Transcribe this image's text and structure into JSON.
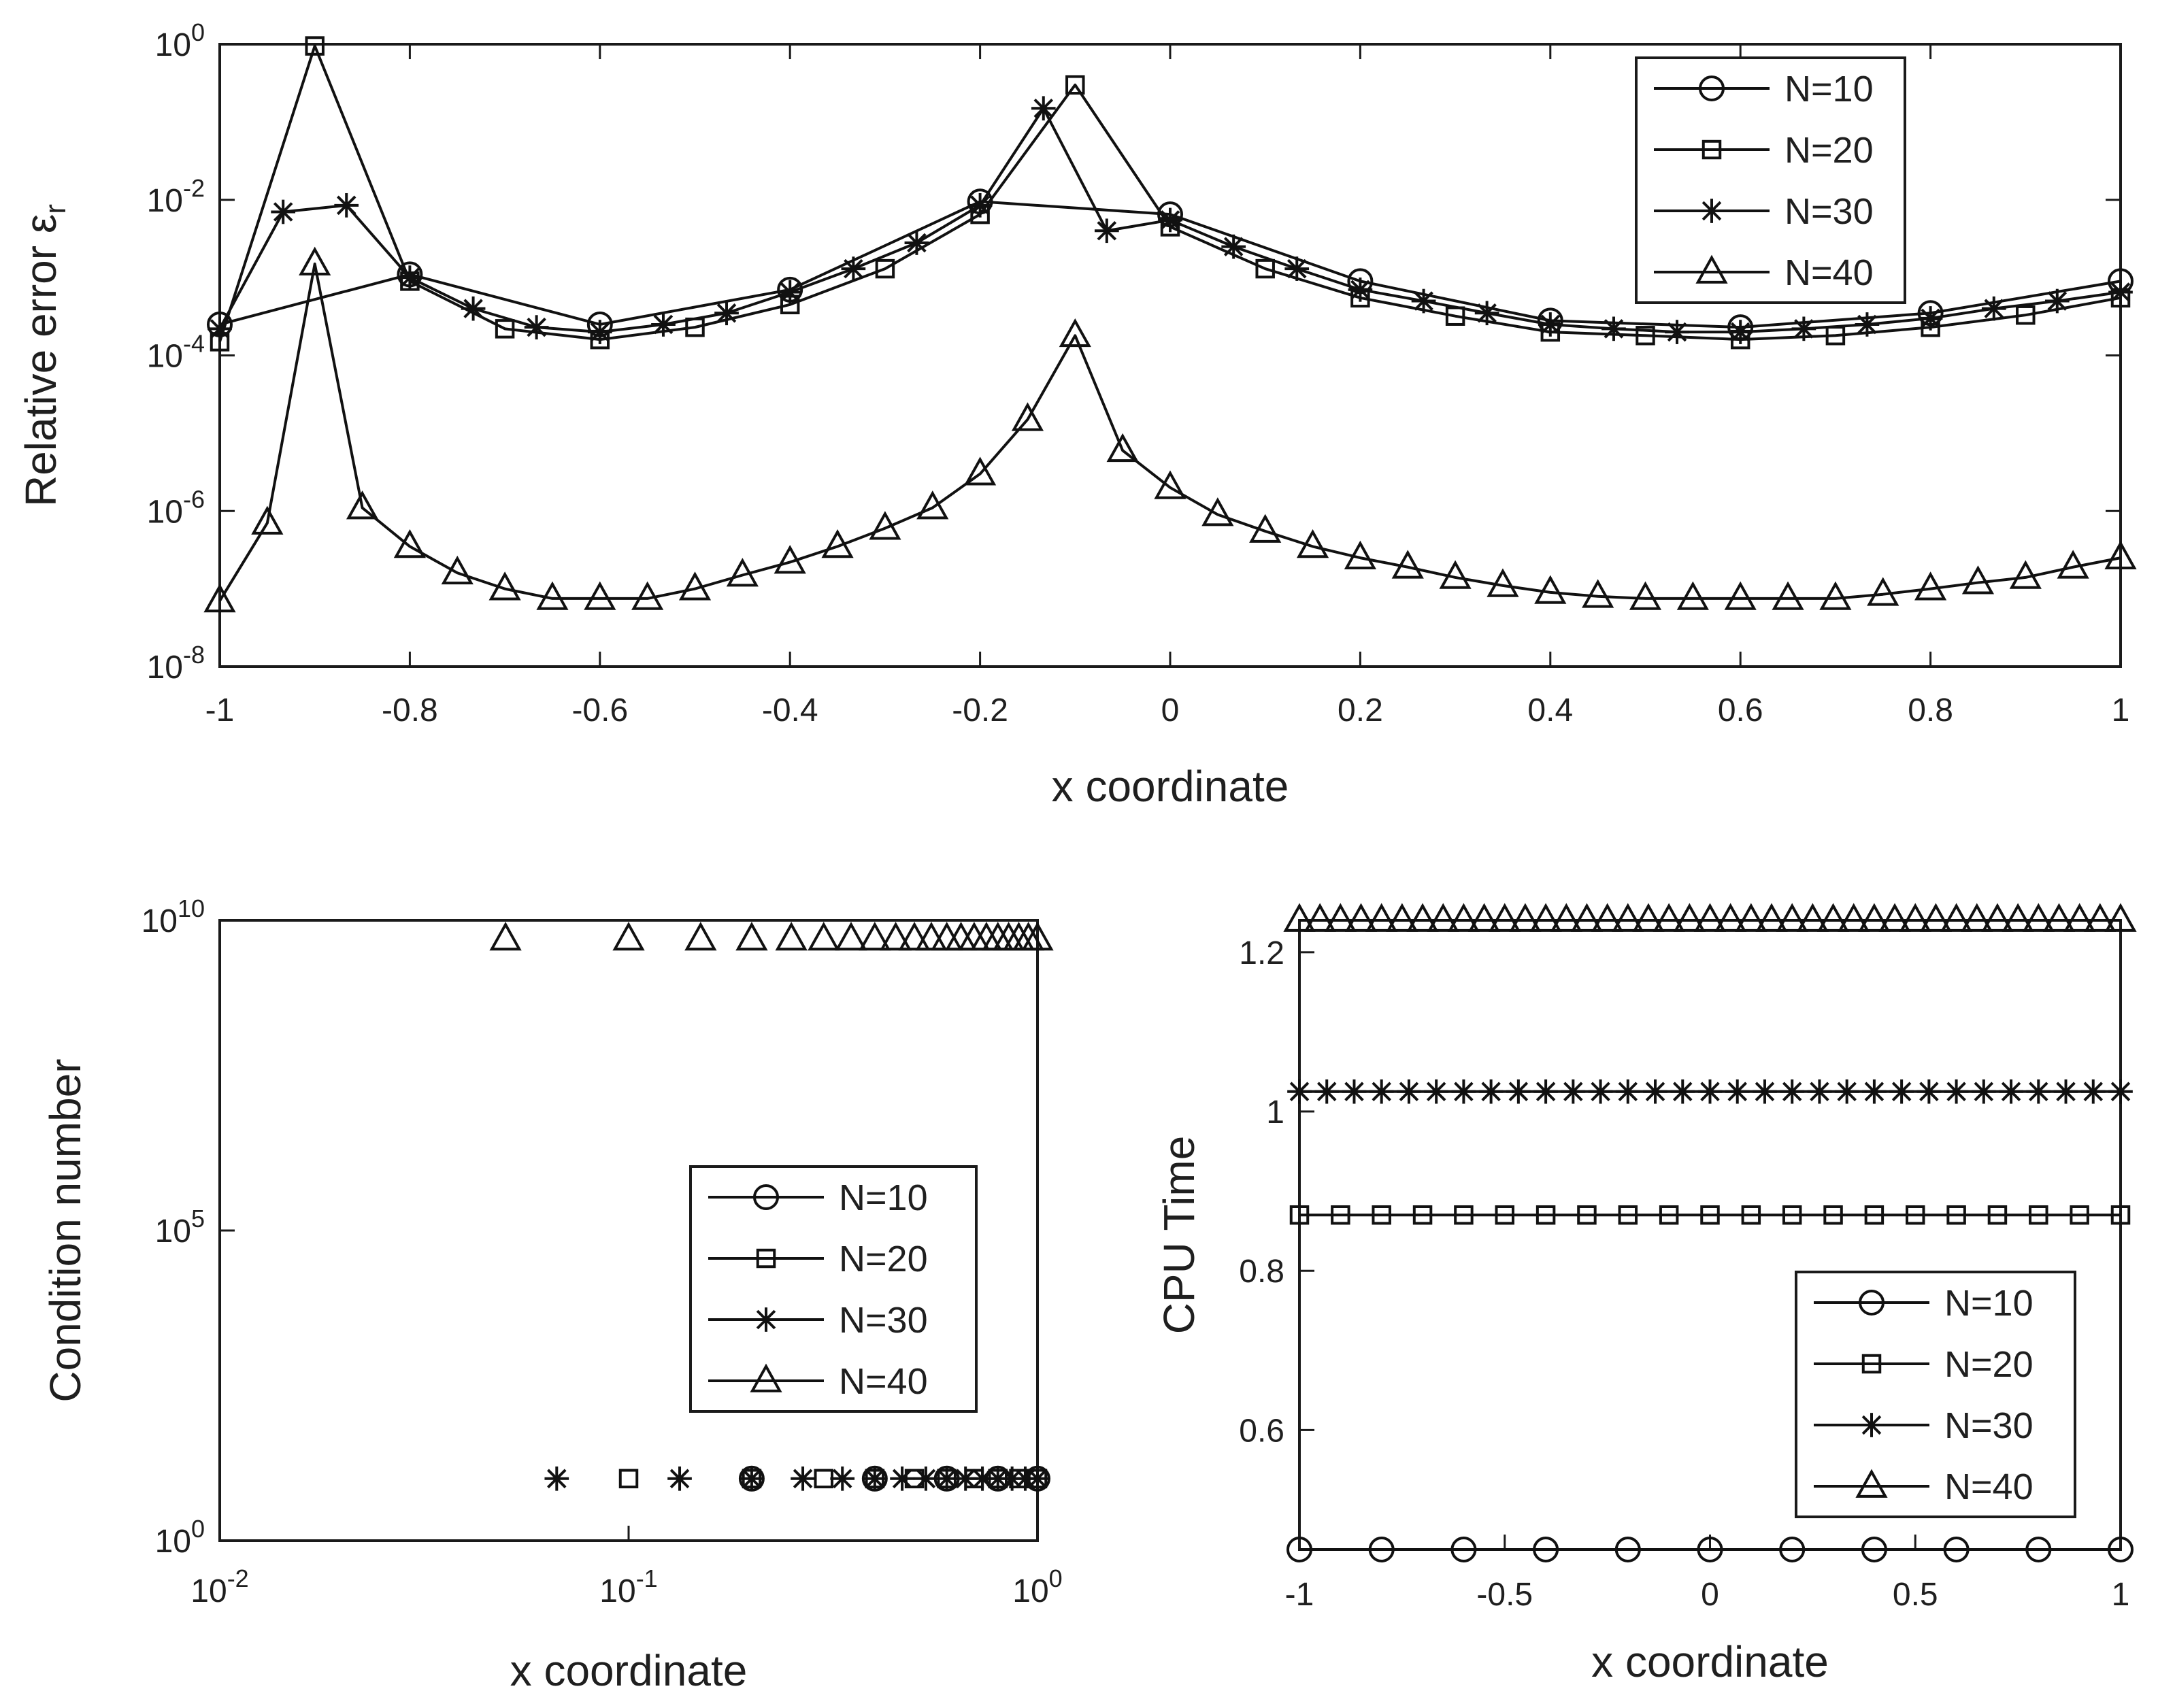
{
  "chart_data": [
    {
      "id": "top",
      "type": "line",
      "xlabel": "x coordinate",
      "ylabel": "Relative error ε",
      "ylabel_sub": "r",
      "xscale": "linear",
      "yscale": "log",
      "xlim": [
        -1,
        1
      ],
      "ylim": [
        1e-08,
        1
      ],
      "xticks": [
        -1,
        -0.8,
        -0.6,
        -0.4,
        -0.2,
        0,
        0.2,
        0.4,
        0.6,
        0.8,
        1
      ],
      "xtick_labels": [
        "-1",
        "-0.8",
        "-0.6",
        "-0.4",
        "-0.2",
        "0",
        "0.2",
        "0.4",
        "0.6",
        "0.8",
        "1"
      ],
      "ytick_exponents": [
        0,
        -2,
        -4,
        -6,
        -8
      ],
      "ytick_base": "10",
      "legend_position": "top-right",
      "series": [
        {
          "name": "N=10",
          "marker": "circle",
          "x": [
            -1,
            -0.8,
            -0.6,
            -0.4,
            -0.2,
            0,
            0.2,
            0.4,
            0.6,
            0.8,
            1
          ],
          "y": [
            0.00025,
            0.0011,
            0.00025,
            0.0007,
            0.0095,
            0.0065,
            0.0009,
            0.00028,
            0.00023,
            0.00035,
            0.0009
          ]
        },
        {
          "name": "N=20",
          "marker": "square",
          "x": [
            -1,
            -0.9,
            -0.8,
            -0.7,
            -0.6,
            -0.5,
            -0.4,
            -0.3,
            -0.2,
            -0.1,
            0,
            0.1,
            0.2,
            0.3,
            0.4,
            0.5,
            0.6,
            0.7,
            0.8,
            0.9,
            1
          ],
          "y": [
            0.00015,
            0.95,
            0.0009,
            0.00022,
            0.00016,
            0.00023,
            0.00045,
            0.0013,
            0.0065,
            0.3,
            0.0045,
            0.0013,
            0.00055,
            0.00032,
            0.0002,
            0.00018,
            0.00016,
            0.00018,
            0.00023,
            0.00033,
            0.00055
          ]
        },
        {
          "name": "N=30",
          "marker": "star",
          "x": [
            -1,
            -0.9333,
            -0.8667,
            -0.8,
            -0.7333,
            -0.6667,
            -0.6,
            -0.5333,
            -0.4667,
            -0.4,
            -0.3333,
            -0.2667,
            -0.2,
            -0.1333,
            -0.0667,
            0,
            0.0667,
            0.1333,
            0.2,
            0.2667,
            0.3333,
            0.4,
            0.4667,
            0.5333,
            0.6,
            0.6667,
            0.7333,
            0.8,
            0.8667,
            0.9333,
            1
          ],
          "y": [
            0.00022,
            0.007,
            0.0085,
            0.001,
            0.0004,
            0.00023,
            0.0002,
            0.00025,
            0.00035,
            0.00065,
            0.0013,
            0.0028,
            0.0085,
            0.15,
            0.004,
            0.0055,
            0.0025,
            0.0013,
            0.0007,
            0.0005,
            0.00035,
            0.00025,
            0.00022,
            0.0002,
            0.0002,
            0.00022,
            0.00025,
            0.0003,
            0.0004,
            0.0005,
            0.00065
          ]
        },
        {
          "name": "N=40",
          "marker": "triangle",
          "x": [
            -1,
            -0.95,
            -0.9,
            -0.85,
            -0.8,
            -0.75,
            -0.7,
            -0.65,
            -0.6,
            -0.55,
            -0.5,
            -0.45,
            -0.4,
            -0.35,
            -0.3,
            -0.25,
            -0.2,
            -0.15,
            -0.1,
            -0.05,
            0,
            0.05,
            0.1,
            0.15,
            0.2,
            0.25,
            0.3,
            0.35,
            0.4,
            0.45,
            0.5,
            0.55,
            0.6,
            0.65,
            0.7,
            0.75,
            0.8,
            0.85,
            0.9,
            0.95,
            1
          ],
          "y": [
            7e-08,
            7e-07,
            0.0015,
            1.1e-06,
            3.5e-07,
            1.6e-07,
            1e-07,
            7.5e-08,
            7.5e-08,
            7.5e-08,
            1e-07,
            1.5e-07,
            2.2e-07,
            3.5e-07,
            6e-07,
            1.1e-06,
            3e-06,
            1.5e-05,
            0.00018,
            6e-06,
            2e-06,
            9e-07,
            5.5e-07,
            3.5e-07,
            2.5e-07,
            1.9e-07,
            1.4e-07,
            1.1e-07,
            9e-08,
            8e-08,
            7.5e-08,
            7.5e-08,
            7.5e-08,
            7.5e-08,
            7.5e-08,
            8.5e-08,
            1e-07,
            1.2e-07,
            1.4e-07,
            1.9e-07,
            2.5e-07
          ]
        }
      ]
    },
    {
      "id": "bl",
      "type": "scatter",
      "xlabel": "x coordinate",
      "ylabel": "Condition number",
      "xscale": "log",
      "yscale": "log",
      "xlim": [
        0.01,
        1
      ],
      "ylim": [
        1,
        10000000000.0
      ],
      "xtick_exponents": [
        -2,
        -1,
        0
      ],
      "ytick_exponents": [
        10,
        5,
        0
      ],
      "ytick_base": "10",
      "xtick_base": "10",
      "legend_position": "right-middle",
      "series": [
        {
          "name": "N=10",
          "marker": "circle",
          "x": [
            0.2,
            0.4,
            0.6,
            0.8,
            1.0
          ],
          "y": [
            10,
            10,
            10,
            10,
            10
          ]
        },
        {
          "name": "N=20",
          "marker": "square",
          "x": [
            0.1,
            0.2,
            0.3,
            0.4,
            0.5,
            0.6,
            0.7,
            0.8,
            0.9,
            1.0
          ],
          "y": [
            10,
            10,
            10,
            10,
            10,
            10,
            10,
            10,
            10,
            10
          ]
        },
        {
          "name": "N=30",
          "marker": "star",
          "x": [
            0.0667,
            0.1333,
            0.2,
            0.2667,
            0.3333,
            0.4,
            0.4667,
            0.5333,
            0.6,
            0.6667,
            0.7333,
            0.8,
            0.8667,
            0.9333,
            1.0
          ],
          "y": [
            10,
            10,
            10,
            10,
            10,
            10,
            10,
            10,
            10,
            10,
            10,
            10,
            10,
            10,
            10
          ]
        },
        {
          "name": "N=40",
          "marker": "triangle",
          "x": [
            0.05,
            0.1,
            0.15,
            0.2,
            0.25,
            0.3,
            0.35,
            0.4,
            0.45,
            0.5,
            0.55,
            0.6,
            0.65,
            0.7,
            0.75,
            0.8,
            0.85,
            0.9,
            0.95,
            1.0
          ],
          "y": [
            5000000000.0,
            5000000000.0,
            5000000000.0,
            5000000000.0,
            5000000000.0,
            5000000000.0,
            5000000000.0,
            5000000000.0,
            5000000000.0,
            5000000000.0,
            5000000000.0,
            5000000000.0,
            5000000000.0,
            5000000000.0,
            5000000000.0,
            5000000000.0,
            5000000000.0,
            5000000000.0,
            5000000000.0,
            5000000000.0
          ]
        }
      ]
    },
    {
      "id": "br",
      "type": "scatter",
      "xlabel": "x coordinate",
      "ylabel": "CPU Time",
      "xscale": "linear",
      "yscale": "linear",
      "xlim": [
        -1,
        1
      ],
      "ylim": [
        0.45,
        1.24
      ],
      "xticks": [
        -1,
        -0.5,
        0,
        0.5,
        1
      ],
      "xtick_labels": [
        "-1",
        "-0.5",
        "0",
        "0.5",
        "1"
      ],
      "yticks": [
        0.6,
        0.8,
        1,
        1.2
      ],
      "ytick_labels": [
        "0.6",
        "0.8",
        "1",
        "1.2"
      ],
      "legend_position": "bottom-right",
      "series": [
        {
          "name": "N=10",
          "marker": "circle",
          "n": 11,
          "value": 0.45
        },
        {
          "name": "N=20",
          "marker": "square",
          "n": 21,
          "value": 0.87
        },
        {
          "name": "N=30",
          "marker": "star",
          "n": 31,
          "value": 1.025
        },
        {
          "name": "N=40",
          "marker": "triangle",
          "n": 41,
          "value": 1.24
        }
      ]
    }
  ]
}
